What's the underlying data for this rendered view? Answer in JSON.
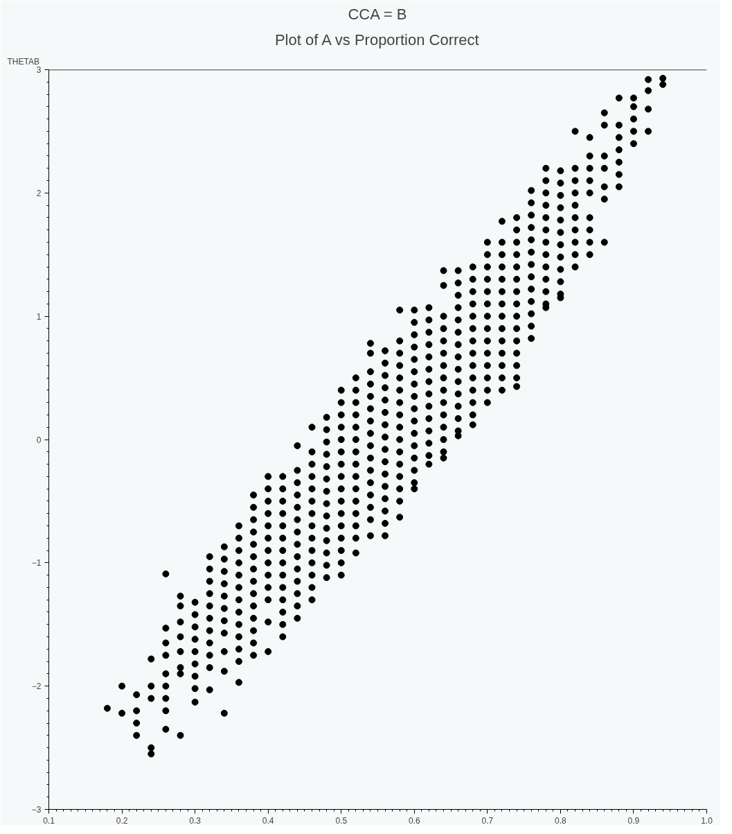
{
  "chart_data": {
    "type": "scatter",
    "title": "CCA = B",
    "subtitle": "Plot of A vs Proportion Correct",
    "ylabel": "THETAB",
    "marker": "circle",
    "grid": false,
    "xlim": [
      0.1,
      1.0
    ],
    "xticks": [
      0.1,
      0.2,
      0.3,
      0.4,
      0.5,
      0.6,
      0.7,
      0.8,
      0.9,
      {
        "value": 1.0,
        "label": "1.0"
      }
    ],
    "ylim": [
      -3,
      3
    ],
    "yticks": [
      -3,
      -2,
      -1,
      0,
      1,
      2,
      3
    ],
    "series": [
      {
        "color": "#000000",
        "x": [
          0.18
        ],
        "values": [
          -2.18
        ]
      },
      {
        "color": "#000000",
        "x": [
          0.2,
          0.2
        ],
        "values": [
          -2.0,
          -2.22
        ]
      },
      {
        "color": "#000000",
        "x": [
          0.22,
          0.22,
          0.22,
          0.22
        ],
        "values": [
          -2.07,
          -2.2,
          -2.3,
          -2.4
        ]
      },
      {
        "color": "#000000",
        "x": [
          0.24,
          0.24,
          0.24,
          0.24,
          0.24
        ],
        "values": [
          -1.78,
          -2.0,
          -2.1,
          -2.5,
          -2.55
        ]
      },
      {
        "color": "#000000",
        "x": [
          0.26,
          0.26,
          0.26,
          0.26,
          0.26,
          0.26,
          0.26,
          0.26,
          0.26
        ],
        "values": [
          -1.09,
          -1.53,
          -1.65,
          -1.75,
          -1.9,
          -2.0,
          -2.1,
          -2.2,
          -2.35
        ]
      },
      {
        "color": "#000000",
        "x": [
          0.28,
          0.28,
          0.28,
          0.28,
          0.28,
          0.28,
          0.28,
          0.28
        ],
        "values": [
          -1.27,
          -1.35,
          -1.48,
          -1.6,
          -1.72,
          -1.85,
          -1.9,
          -2.4
        ]
      },
      {
        "color": "#000000",
        "x": [
          0.3,
          0.3,
          0.3,
          0.3,
          0.3,
          0.3,
          0.3,
          0.3,
          0.3
        ],
        "values": [
          -1.32,
          -1.42,
          -1.52,
          -1.62,
          -1.72,
          -1.82,
          -1.92,
          -2.02,
          -2.13
        ]
      },
      {
        "color": "#000000",
        "x": [
          0.32,
          0.32,
          0.32,
          0.32,
          0.32,
          0.32,
          0.32,
          0.32,
          0.32,
          0.32,
          0.32
        ],
        "values": [
          -0.95,
          -1.05,
          -1.15,
          -1.25,
          -1.35,
          -1.45,
          -1.55,
          -1.65,
          -1.75,
          -1.85,
          -2.03
        ]
      },
      {
        "color": "#000000",
        "x": [
          0.34,
          0.34,
          0.34,
          0.34,
          0.34,
          0.34,
          0.34,
          0.34,
          0.34,
          0.34,
          0.34
        ],
        "values": [
          -0.87,
          -0.97,
          -1.07,
          -1.17,
          -1.27,
          -1.37,
          -1.47,
          -1.57,
          -1.72,
          -1.88,
          -2.22
        ]
      },
      {
        "color": "#000000",
        "x": [
          0.36,
          0.36,
          0.36,
          0.36,
          0.36,
          0.36,
          0.36,
          0.36,
          0.36,
          0.36,
          0.36,
          0.36,
          0.36
        ],
        "values": [
          -0.7,
          -0.8,
          -0.9,
          -1.0,
          -1.1,
          -1.2,
          -1.3,
          -1.4,
          -1.5,
          -1.6,
          -1.7,
          -1.8,
          -1.97
        ]
      },
      {
        "color": "#000000",
        "x": [
          0.38,
          0.38,
          0.38,
          0.38,
          0.38,
          0.38,
          0.38,
          0.38,
          0.38,
          0.38,
          0.38,
          0.38,
          0.38,
          0.38
        ],
        "values": [
          -0.45,
          -0.55,
          -0.65,
          -0.75,
          -0.85,
          -0.95,
          -1.05,
          -1.15,
          -1.25,
          -1.35,
          -1.45,
          -1.55,
          -1.65,
          -1.75
        ]
      },
      {
        "color": "#000000",
        "x": [
          0.4,
          0.4,
          0.4,
          0.4,
          0.4,
          0.4,
          0.4,
          0.4,
          0.4,
          0.4,
          0.4,
          0.4,
          0.4
        ],
        "values": [
          -0.3,
          -0.4,
          -0.5,
          -0.6,
          -0.7,
          -0.8,
          -0.9,
          -1.0,
          -1.1,
          -1.2,
          -1.3,
          -1.48,
          -1.72
        ]
      },
      {
        "color": "#000000",
        "x": [
          0.42,
          0.42,
          0.42,
          0.42,
          0.42,
          0.42,
          0.42,
          0.42,
          0.42,
          0.42,
          0.42,
          0.42,
          0.42,
          0.42
        ],
        "values": [
          -0.3,
          -0.4,
          -0.5,
          -0.6,
          -0.7,
          -0.8,
          -0.9,
          -1.0,
          -1.1,
          -1.2,
          -1.3,
          -1.4,
          -1.5,
          -1.6
        ]
      },
      {
        "color": "#000000",
        "x": [
          0.44,
          0.44,
          0.44,
          0.44,
          0.44,
          0.44,
          0.44,
          0.44,
          0.44,
          0.44,
          0.44,
          0.44,
          0.44,
          0.44
        ],
        "values": [
          -0.05,
          -0.25,
          -0.35,
          -0.45,
          -0.55,
          -0.65,
          -0.75,
          -0.85,
          -0.95,
          -1.05,
          -1.15,
          -1.25,
          -1.35,
          -1.45
        ]
      },
      {
        "color": "#000000",
        "x": [
          0.46,
          0.46,
          0.46,
          0.46,
          0.46,
          0.46,
          0.46,
          0.46,
          0.46,
          0.46,
          0.46,
          0.46,
          0.46,
          0.46
        ],
        "values": [
          0.1,
          -0.1,
          -0.2,
          -0.3,
          -0.4,
          -0.5,
          -0.6,
          -0.7,
          -0.8,
          -0.9,
          -1.0,
          -1.1,
          -1.2,
          -1.3
        ]
      },
      {
        "color": "#000000",
        "x": [
          0.48,
          0.48,
          0.48,
          0.48,
          0.48,
          0.48,
          0.48,
          0.48,
          0.48,
          0.48,
          0.48,
          0.48,
          0.48,
          0.48
        ],
        "values": [
          0.18,
          0.08,
          -0.02,
          -0.12,
          -0.22,
          -0.32,
          -0.42,
          -0.52,
          -0.62,
          -0.72,
          -0.82,
          -0.92,
          -1.02,
          -1.12
        ]
      },
      {
        "color": "#000000",
        "x": [
          0.5,
          0.5,
          0.5,
          0.5,
          0.5,
          0.5,
          0.5,
          0.5,
          0.5,
          0.5,
          0.5,
          0.5,
          0.5,
          0.5,
          0.5,
          0.5
        ],
        "values": [
          0.4,
          0.3,
          0.2,
          0.1,
          0.0,
          -0.1,
          -0.2,
          -0.3,
          -0.4,
          -0.5,
          -0.6,
          -0.7,
          -0.8,
          -0.9,
          -1.0,
          -1.1
        ]
      },
      {
        "color": "#000000",
        "x": [
          0.52,
          0.52,
          0.52,
          0.52,
          0.52,
          0.52,
          0.52,
          0.52,
          0.52,
          0.52,
          0.52,
          0.52,
          0.52,
          0.52,
          0.52
        ],
        "values": [
          0.5,
          0.4,
          0.3,
          0.2,
          0.1,
          0.0,
          -0.1,
          -0.2,
          -0.3,
          -0.4,
          -0.5,
          -0.6,
          -0.7,
          -0.8,
          -0.92
        ]
      },
      {
        "color": "#000000",
        "x": [
          0.54,
          0.54,
          0.54,
          0.54,
          0.54,
          0.54,
          0.54,
          0.54,
          0.54,
          0.54,
          0.54,
          0.54,
          0.54,
          0.54,
          0.54,
          0.54
        ],
        "values": [
          0.78,
          0.7,
          0.55,
          0.45,
          0.35,
          0.25,
          0.15,
          0.05,
          -0.05,
          -0.15,
          -0.25,
          -0.35,
          -0.45,
          -0.55,
          -0.65,
          -0.78
        ]
      },
      {
        "color": "#000000",
        "x": [
          0.56,
          0.56,
          0.56,
          0.56,
          0.56,
          0.56,
          0.56,
          0.56,
          0.56,
          0.56,
          0.56,
          0.56,
          0.56,
          0.56,
          0.56,
          0.56
        ],
        "values": [
          0.72,
          0.62,
          0.52,
          0.42,
          0.32,
          0.22,
          0.12,
          0.02,
          -0.08,
          -0.18,
          -0.28,
          -0.38,
          -0.48,
          -0.58,
          -0.68,
          -0.78
        ]
      },
      {
        "color": "#000000",
        "x": [
          0.58,
          0.58,
          0.58,
          0.58,
          0.58,
          0.58,
          0.58,
          0.58,
          0.58,
          0.58,
          0.58,
          0.58,
          0.58,
          0.58,
          0.58,
          0.58
        ],
        "values": [
          1.05,
          0.8,
          0.7,
          0.6,
          0.5,
          0.4,
          0.3,
          0.2,
          0.1,
          0.0,
          -0.1,
          -0.2,
          -0.3,
          -0.4,
          -0.5,
          -0.63
        ]
      },
      {
        "color": "#000000",
        "x": [
          0.6,
          0.6,
          0.6,
          0.6,
          0.6,
          0.6,
          0.6,
          0.6,
          0.6,
          0.6,
          0.6,
          0.6,
          0.6,
          0.6,
          0.6,
          0.6
        ],
        "values": [
          1.05,
          0.95,
          0.85,
          0.75,
          0.65,
          0.55,
          0.45,
          0.35,
          0.25,
          0.15,
          0.05,
          -0.05,
          -0.15,
          -0.25,
          -0.35,
          -0.4
        ]
      },
      {
        "color": "#000000",
        "x": [
          0.62,
          0.62,
          0.62,
          0.62,
          0.62,
          0.62,
          0.62,
          0.62,
          0.62,
          0.62,
          0.62,
          0.62,
          0.62,
          0.62
        ],
        "values": [
          1.07,
          0.97,
          0.87,
          0.77,
          0.67,
          0.57,
          0.47,
          0.37,
          0.27,
          0.17,
          0.07,
          -0.03,
          -0.13,
          -0.2
        ]
      },
      {
        "color": "#000000",
        "x": [
          0.64,
          0.64,
          0.64,
          0.64,
          0.64,
          0.64,
          0.64,
          0.64,
          0.64,
          0.64,
          0.64,
          0.64,
          0.64,
          0.64,
          0.64
        ],
        "values": [
          1.37,
          1.25,
          1.0,
          0.9,
          0.8,
          0.7,
          0.6,
          0.5,
          0.4,
          0.3,
          0.2,
          0.1,
          0.0,
          -0.1,
          -0.15
        ]
      },
      {
        "color": "#000000",
        "x": [
          0.66,
          0.66,
          0.66,
          0.66,
          0.66,
          0.66,
          0.66,
          0.66,
          0.66,
          0.66,
          0.66,
          0.66,
          0.66,
          0.66,
          0.66
        ],
        "values": [
          1.37,
          1.27,
          1.17,
          1.07,
          0.97,
          0.87,
          0.77,
          0.67,
          0.57,
          0.47,
          0.37,
          0.27,
          0.17,
          0.07,
          0.03
        ]
      },
      {
        "color": "#000000",
        "x": [
          0.68,
          0.68,
          0.68,
          0.68,
          0.68,
          0.68,
          0.68,
          0.68,
          0.68,
          0.68,
          0.68,
          0.68,
          0.68,
          0.68
        ],
        "values": [
          1.4,
          1.3,
          1.2,
          1.1,
          1.0,
          0.9,
          0.8,
          0.7,
          0.6,
          0.5,
          0.4,
          0.3,
          0.2,
          0.12
        ]
      },
      {
        "color": "#000000",
        "x": [
          0.7,
          0.7,
          0.7,
          0.7,
          0.7,
          0.7,
          0.7,
          0.7,
          0.7,
          0.7,
          0.7,
          0.7,
          0.7,
          0.7
        ],
        "values": [
          1.6,
          1.5,
          1.4,
          1.3,
          1.2,
          1.1,
          1.0,
          0.9,
          0.8,
          0.7,
          0.6,
          0.5,
          0.4,
          0.3
        ]
      },
      {
        "color": "#000000",
        "x": [
          0.72,
          0.72,
          0.72,
          0.72,
          0.72,
          0.72,
          0.72,
          0.72,
          0.72,
          0.72,
          0.72,
          0.72,
          0.72,
          0.72
        ],
        "values": [
          1.77,
          1.6,
          1.5,
          1.4,
          1.3,
          1.2,
          1.1,
          1.0,
          0.9,
          0.8,
          0.7,
          0.6,
          0.5,
          0.4
        ]
      },
      {
        "color": "#000000",
        "x": [
          0.74,
          0.74,
          0.74,
          0.74,
          0.74,
          0.74,
          0.74,
          0.74,
          0.74,
          0.74,
          0.74,
          0.74,
          0.74,
          0.74,
          0.74
        ],
        "values": [
          1.8,
          1.7,
          1.6,
          1.5,
          1.4,
          1.3,
          1.2,
          1.1,
          1.0,
          0.9,
          0.8,
          0.7,
          0.6,
          0.5,
          0.43
        ]
      },
      {
        "color": "#000000",
        "x": [
          0.76,
          0.76,
          0.76,
          0.76,
          0.76,
          0.76,
          0.76,
          0.76,
          0.76,
          0.76,
          0.76,
          0.76,
          0.76
        ],
        "values": [
          2.02,
          1.92,
          1.82,
          1.72,
          1.62,
          1.52,
          1.42,
          1.32,
          1.22,
          1.12,
          1.02,
          0.92,
          0.82
        ]
      },
      {
        "color": "#000000",
        "x": [
          0.78,
          0.78,
          0.78,
          0.78,
          0.78,
          0.78,
          0.78,
          0.78,
          0.78,
          0.78,
          0.78,
          0.78,
          0.78
        ],
        "values": [
          2.2,
          2.1,
          2.0,
          1.9,
          1.8,
          1.7,
          1.6,
          1.5,
          1.4,
          1.3,
          1.2,
          1.1,
          1.07
        ]
      },
      {
        "color": "#000000",
        "x": [
          0.8,
          0.8,
          0.8,
          0.8,
          0.8,
          0.8,
          0.8,
          0.8,
          0.8,
          0.8,
          0.8,
          0.8
        ],
        "values": [
          2.18,
          2.08,
          1.98,
          1.88,
          1.78,
          1.68,
          1.58,
          1.48,
          1.38,
          1.28,
          1.18,
          1.15
        ]
      },
      {
        "color": "#000000",
        "x": [
          0.82,
          0.82,
          0.82,
          0.82,
          0.82,
          0.82,
          0.82,
          0.82,
          0.82,
          0.82
        ],
        "values": [
          2.5,
          2.2,
          2.1,
          2.0,
          1.9,
          1.8,
          1.7,
          1.6,
          1.5,
          1.4
        ]
      },
      {
        "color": "#000000",
        "x": [
          0.84,
          0.84,
          0.84,
          0.84,
          0.84,
          0.84,
          0.84,
          0.84,
          0.84
        ],
        "values": [
          2.45,
          2.3,
          2.2,
          2.1,
          2.0,
          1.8,
          1.7,
          1.6,
          1.5
        ]
      },
      {
        "color": "#000000",
        "x": [
          0.86,
          0.86,
          0.86,
          0.86,
          0.86,
          0.86,
          0.86
        ],
        "values": [
          2.65,
          2.55,
          2.3,
          2.2,
          2.05,
          1.95,
          1.6
        ]
      },
      {
        "color": "#000000",
        "x": [
          0.88,
          0.88,
          0.88,
          0.88,
          0.88,
          0.88,
          0.88
        ],
        "values": [
          2.77,
          2.55,
          2.45,
          2.35,
          2.25,
          2.15,
          2.05
        ]
      },
      {
        "color": "#000000",
        "x": [
          0.9,
          0.9,
          0.9,
          0.9,
          0.9
        ],
        "values": [
          2.77,
          2.7,
          2.6,
          2.5,
          2.4
        ]
      },
      {
        "color": "#000000",
        "x": [
          0.92,
          0.92,
          0.92,
          0.92
        ],
        "values": [
          2.92,
          2.83,
          2.68,
          2.5
        ]
      },
      {
        "color": "#000000",
        "x": [
          0.94,
          0.94
        ],
        "values": [
          2.93,
          2.88
        ]
      }
    ]
  }
}
